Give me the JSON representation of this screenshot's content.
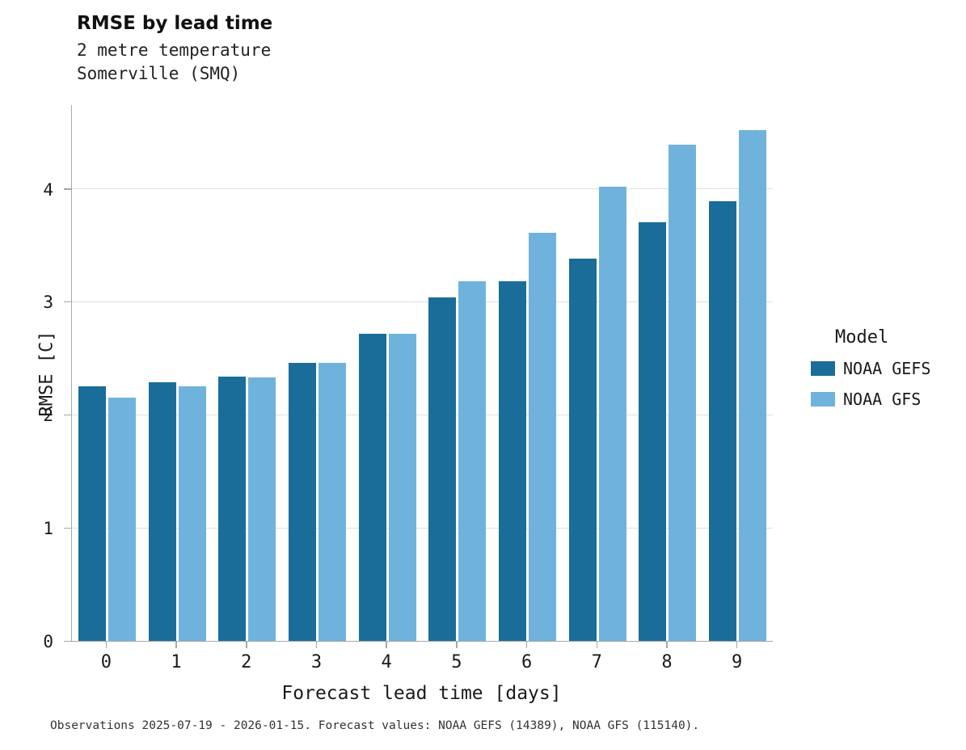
{
  "header": {
    "title": "RMSE by lead time",
    "subtitle1": "2 metre temperature",
    "subtitle2": "Somerville (SMQ)"
  },
  "caption": "Observations 2025-07-19 - 2026-01-15. Forecast values: NOAA GEFS (14389), NOAA GFS (115140).",
  "legend": {
    "title": "Model",
    "entries": [
      {
        "label": "NOAA GEFS",
        "color": "#1a6d99"
      },
      {
        "label": "NOAA GFS",
        "color": "#6fb3dc"
      }
    ]
  },
  "colors": {
    "gefs": "#1a6d99",
    "gfs": "#6fb3dc",
    "grid": "#e0e0e0",
    "spine": "#a8a8a8"
  },
  "chart_data": {
    "type": "bar",
    "title": "RMSE by lead time",
    "subtitle": "2 metre temperature, Somerville (SMQ)",
    "xlabel": "Forecast lead time [days]",
    "ylabel": "RMSE [C]",
    "categories": [
      "0",
      "1",
      "2",
      "3",
      "4",
      "5",
      "6",
      "7",
      "8",
      "9"
    ],
    "series": [
      {
        "name": "NOAA GEFS",
        "color": "#1a6d99",
        "values": [
          2.25,
          2.29,
          2.34,
          2.46,
          2.72,
          3.04,
          3.18,
          3.38,
          3.7,
          3.89
        ]
      },
      {
        "name": "NOAA GFS",
        "color": "#6fb3dc",
        "values": [
          2.15,
          2.25,
          2.33,
          2.46,
          2.72,
          3.18,
          3.61,
          4.02,
          4.39,
          4.52
        ]
      }
    ],
    "ylim": [
      0,
      4.74
    ],
    "yticks": [
      0,
      1,
      2,
      3,
      4
    ],
    "grid": true,
    "legend_position": "right",
    "legend_title": "Model"
  }
}
